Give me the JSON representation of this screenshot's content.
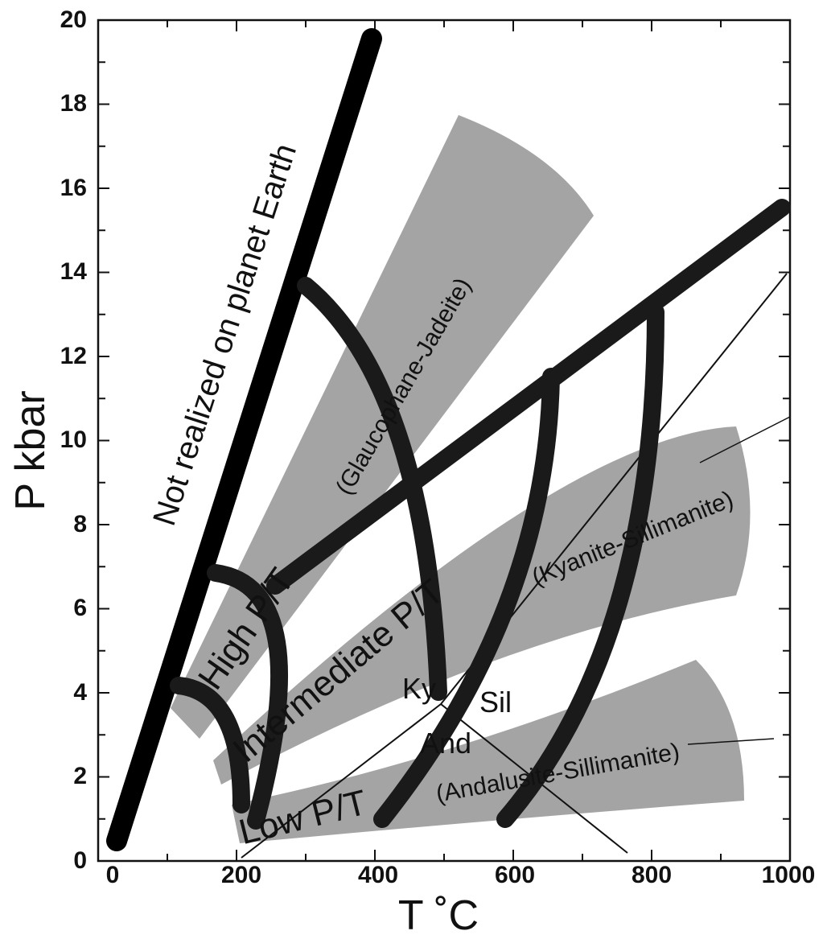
{
  "axes": {
    "x_title": "T ˚C",
    "y_title": "P  kbar",
    "x_ticks": [
      "0",
      "200",
      "400",
      "600",
      "800",
      "1000"
    ],
    "y_ticks": [
      "0",
      "2",
      "4",
      "6",
      "8",
      "10",
      "12",
      "14",
      "16",
      "18",
      "20"
    ],
    "x_range": [
      0,
      1000
    ],
    "y_range": [
      0,
      20
    ]
  },
  "labels": {
    "not_realized": "Not realized on planet Earth",
    "high_pt": "High  P/T",
    "glaucophane": "(Glaucophane-Jadeite)",
    "intermediate_pt": "Intermediate  P/T",
    "kyanite": "(Kyanite-Sillimanite)",
    "low_pt": "Low  P/T",
    "andalusite": "(Andalusite-Sillimanite)",
    "ky": "Ky",
    "sil": "Sil",
    "and": "And"
  },
  "colors": {
    "band_fill": "#9a9a9a",
    "curve_stroke": "#1a1a1a",
    "axis": "#111111"
  }
}
